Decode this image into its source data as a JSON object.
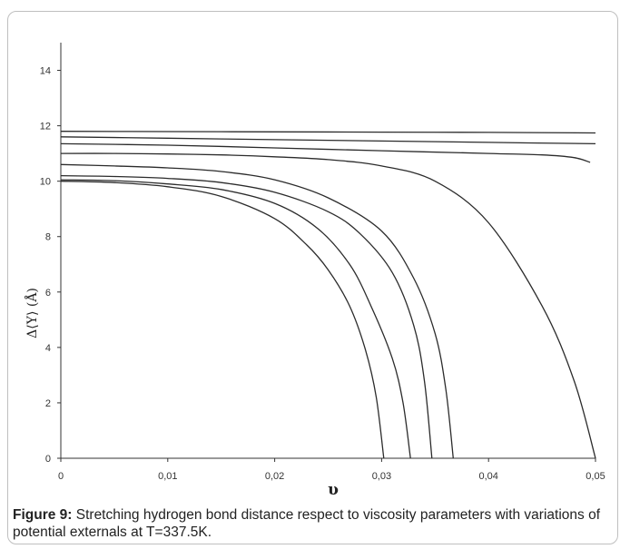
{
  "chart_data": {
    "type": "line",
    "title": "",
    "xlabel": "υ",
    "ylabel": "Δ⟨Y⟩ (Å)",
    "xlim": [
      0,
      0.05
    ],
    "ylim": [
      0,
      15
    ],
    "grid": false,
    "x_ticks": [
      0,
      0.01,
      0.02,
      0.03,
      0.04,
      0.05
    ],
    "x_tick_labels": [
      "0",
      "0,01",
      "0,02",
      "0,03",
      "0,04",
      "0,05"
    ],
    "y_ticks": [
      0,
      2,
      4,
      6,
      8,
      10,
      12,
      14
    ],
    "y_tick_labels": [
      "0",
      "2",
      "4",
      "6",
      "8",
      "10",
      "12",
      "14"
    ],
    "series": [
      {
        "x": [
          0,
          0.01,
          0.02,
          0.03,
          0.04,
          0.05
        ],
        "y": [
          11.8,
          11.79,
          11.78,
          11.77,
          11.76,
          11.74
        ]
      },
      {
        "x": [
          0,
          0.01,
          0.02,
          0.03,
          0.04,
          0.05
        ],
        "y": [
          11.6,
          11.55,
          11.5,
          11.45,
          11.4,
          11.35
        ]
      },
      {
        "x": [
          0,
          0.01,
          0.02,
          0.03,
          0.04,
          0.045,
          0.048,
          0.0495
        ],
        "y": [
          11.35,
          11.3,
          11.2,
          11.1,
          11.0,
          10.95,
          10.85,
          10.68
        ]
      },
      {
        "x": [
          0,
          0.005,
          0.01,
          0.015,
          0.02,
          0.025,
          0.03,
          0.035,
          0.04,
          0.045,
          0.048,
          0.05
        ],
        "y": [
          11.0,
          11.0,
          10.98,
          10.95,
          10.88,
          10.78,
          10.55,
          10.0,
          8.5,
          5.5,
          2.8,
          0.0
        ]
      },
      {
        "x": [
          0,
          0.005,
          0.01,
          0.015,
          0.02,
          0.025,
          0.03,
          0.033,
          0.035,
          0.036,
          0.0367
        ],
        "y": [
          10.6,
          10.55,
          10.48,
          10.35,
          10.05,
          9.4,
          8.2,
          6.5,
          4.5,
          2.5,
          0.0
        ]
      },
      {
        "x": [
          0,
          0.005,
          0.01,
          0.015,
          0.02,
          0.025,
          0.028,
          0.031,
          0.033,
          0.034,
          0.0347
        ],
        "y": [
          10.2,
          10.17,
          10.1,
          9.95,
          9.6,
          8.9,
          8.1,
          6.7,
          4.8,
          2.8,
          0.0
        ]
      },
      {
        "x": [
          0,
          0.005,
          0.01,
          0.015,
          0.02,
          0.024,
          0.027,
          0.029,
          0.031,
          0.032,
          0.0327
        ],
        "y": [
          10.05,
          10.02,
          9.9,
          9.7,
          9.2,
          8.3,
          7.0,
          5.5,
          3.6,
          2.0,
          0.0
        ]
      },
      {
        "x": [
          0,
          0.005,
          0.01,
          0.015,
          0.02,
          0.023,
          0.025,
          0.027,
          0.0285,
          0.0295,
          0.0302
        ],
        "y": [
          10.0,
          9.95,
          9.8,
          9.45,
          8.65,
          7.7,
          6.8,
          5.5,
          3.9,
          2.2,
          0.0
        ]
      }
    ]
  },
  "caption": {
    "label": "Figure 9:",
    "text": " Stretching hydrogen bond distance respect to viscosity parameters with variations of potential externals at T=337.5K."
  }
}
